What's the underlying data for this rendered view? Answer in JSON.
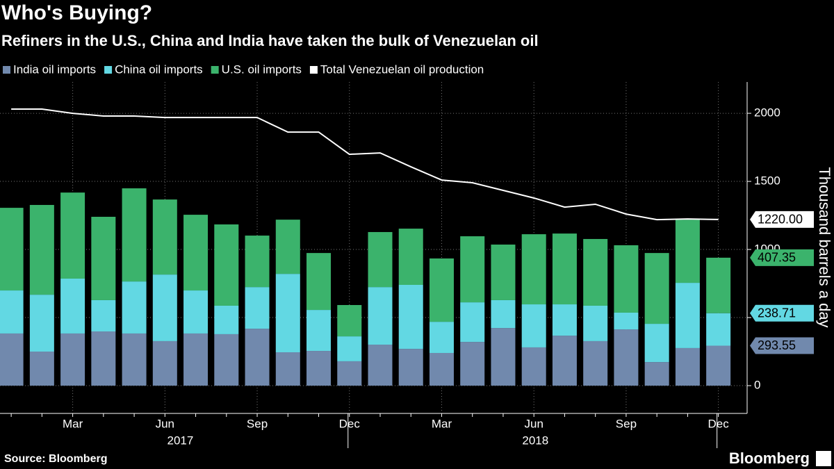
{
  "chart_data": {
    "type": "bar",
    "stacked": true,
    "title": "Who's Buying?",
    "subtitle": "Refiners in the U.S., China and India have taken the bulk of Venezuelan oil",
    "y_label": "Thousand barrels a day",
    "source": "Source: Bloomberg",
    "brand": "Bloomberg",
    "categories": [
      null,
      null,
      "Mar",
      null,
      null,
      "Jun",
      null,
      null,
      "Sep",
      null,
      null,
      "Dec",
      null,
      null,
      "Mar",
      null,
      null,
      "Jun",
      null,
      null,
      "Sep",
      null,
      null,
      "Dec"
    ],
    "year_labels": [
      "2017",
      "2018"
    ],
    "series": [
      {
        "name": "India oil imports",
        "color": "#7189ad",
        "values": [
          383,
          250,
          383,
          398,
          383,
          327,
          383,
          378,
          418,
          245,
          255,
          179,
          301,
          270,
          240,
          321,
          423,
          281,
          367,
          327,
          413,
          173,
          276,
          293.55
        ]
      },
      {
        "name": "China oil imports",
        "color": "#62d8e3",
        "values": [
          316,
          418,
          403,
          230,
          382,
          489,
          316,
          209,
          306,
          576,
          301,
          183,
          423,
          470,
          229,
          291,
          205,
          316,
          230,
          260,
          123,
          281,
          479,
          238.71
        ]
      },
      {
        "name": "U.S. oil imports",
        "color": "#3bb36c",
        "values": [
          607,
          659,
          632,
          612,
          684,
          551,
          556,
          597,
          378,
          398,
          418,
          230,
          404,
          413,
          465,
          485,
          408,
          515,
          520,
          490,
          495,
          520,
          464,
          407.35
        ]
      },
      {
        "name": "Total Venezuelan oil production",
        "color": "#ffffff",
        "type": "line",
        "last_label": "1220.00",
        "values": [
          2031,
          2031,
          2000,
          1980,
          1980,
          1969,
          1969,
          1969,
          1969,
          1862,
          1862,
          1699,
          1709,
          1607,
          1510,
          1490,
          1434,
          1378,
          1311,
          1332,
          1260,
          1219,
          1224,
          1220
        ]
      }
    ],
    "ylim": [
      -204,
      2230
    ],
    "yticks": [
      0,
      500,
      1000,
      1500,
      2000
    ],
    "grid": true
  }
}
